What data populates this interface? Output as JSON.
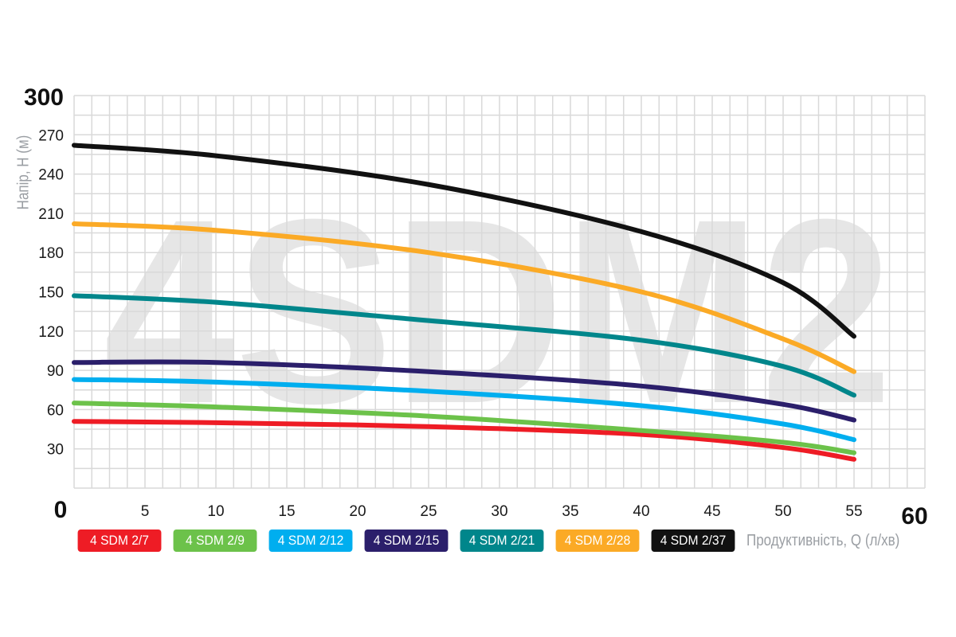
{
  "chart_data": {
    "type": "line",
    "watermark": "4SDM2",
    "xlabel": "Продуктивність, Q (л/хв)",
    "ylabel": "Напір, H (м)",
    "xlim": [
      0,
      60
    ],
    "ylim": [
      0,
      300
    ],
    "xticks": [
      "5",
      "10",
      "15",
      "20",
      "25",
      "30",
      "35",
      "40",
      "45",
      "50",
      "55"
    ],
    "x_end_labels": {
      "min": "0",
      "max": "60"
    },
    "yticks": [
      "30",
      "60",
      "90",
      "120",
      "150",
      "180",
      "210",
      "240",
      "270"
    ],
    "y_max_label": "300",
    "grid": true,
    "legend_position": "bottom",
    "x": [
      0,
      10,
      25,
      40,
      50,
      55
    ],
    "series": [
      {
        "name": "4 SDM 2/7",
        "color": "#ee1c25",
        "values": [
          51,
          50,
          47,
          41,
          31,
          22
        ]
      },
      {
        "name": "4 SDM 2/9",
        "color": "#6cc24a",
        "values": [
          65,
          62,
          55,
          44,
          35,
          27
        ]
      },
      {
        "name": "4 SDM 2/12",
        "color": "#00aeef",
        "values": [
          83,
          81,
          74,
          63,
          49,
          37
        ]
      },
      {
        "name": "4 SDM 2/15",
        "color": "#2b1f6b",
        "values": [
          96,
          96,
          89,
          78,
          64,
          52
        ]
      },
      {
        "name": "4 SDM 2/21",
        "color": "#00868b",
        "values": [
          147,
          142,
          128,
          113,
          93,
          71
        ]
      },
      {
        "name": "4 SDM 2/28",
        "color": "#fbaa26",
        "values": [
          202,
          197,
          180,
          150,
          114,
          89
        ]
      },
      {
        "name": "4 SDM 2/37",
        "color": "#111111",
        "values": [
          262,
          254,
          232,
          196,
          157,
          116
        ]
      }
    ]
  }
}
